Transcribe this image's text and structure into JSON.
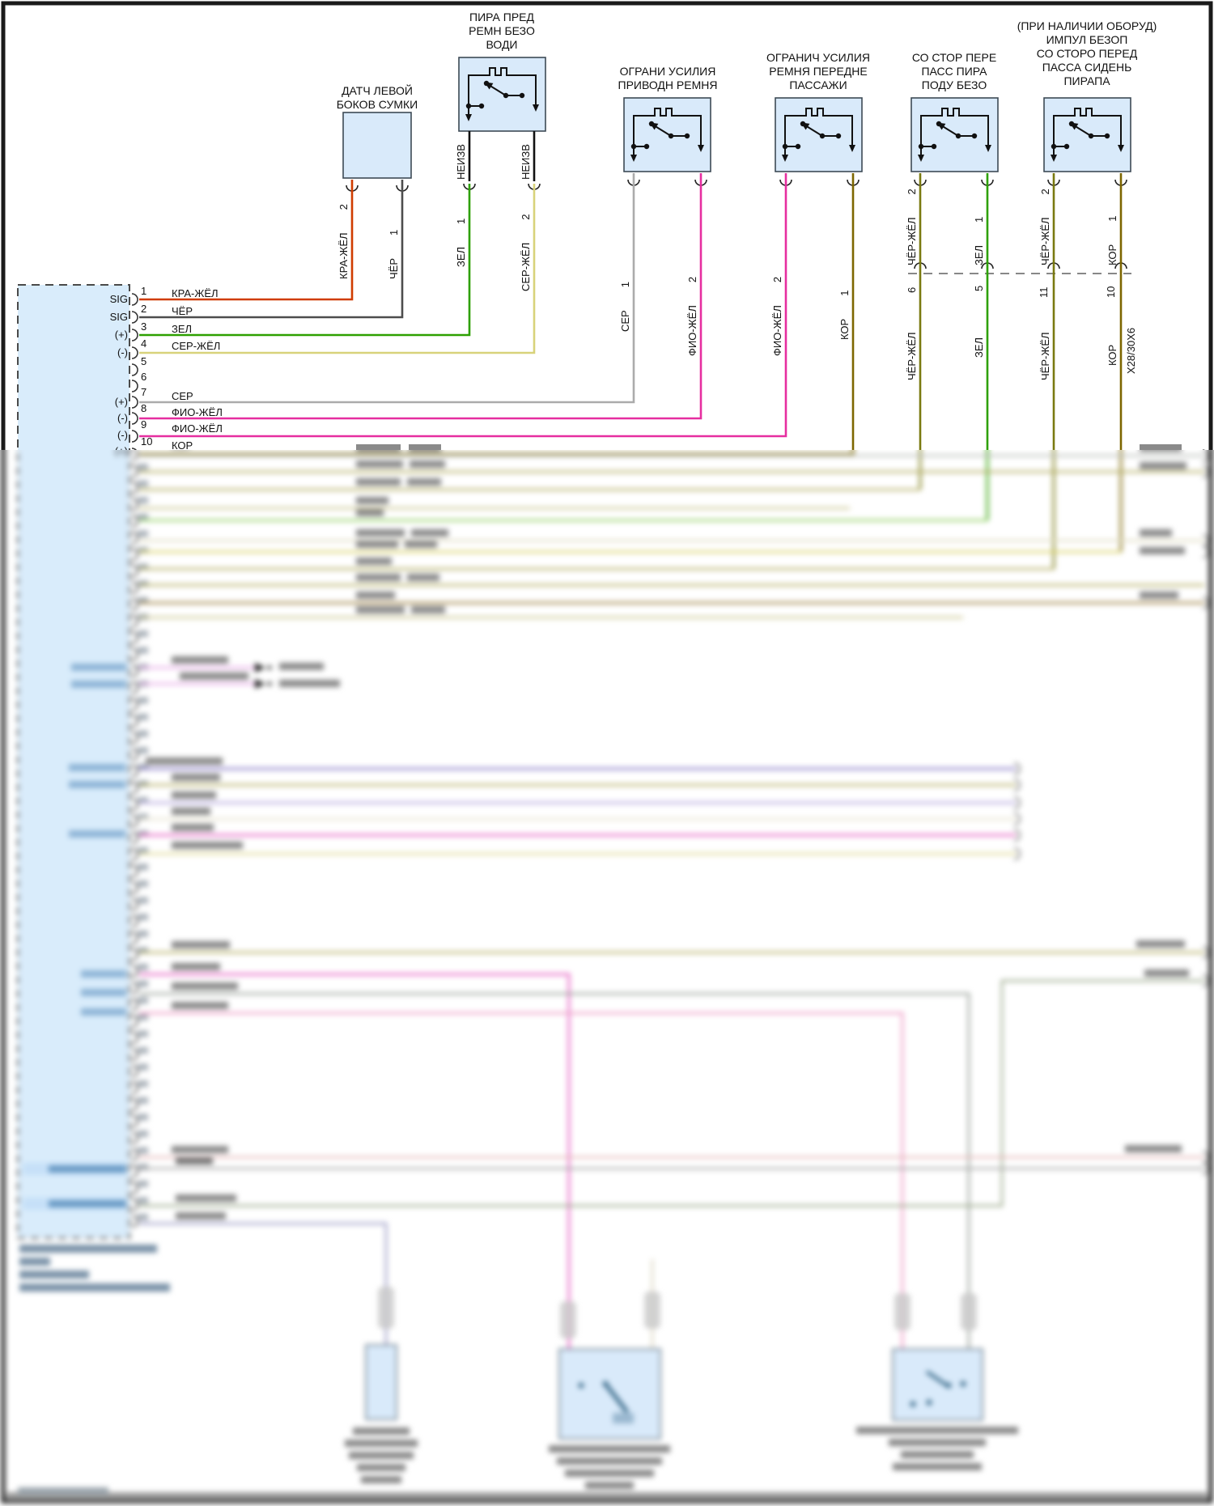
{
  "components": {
    "c1": {
      "title": "ДАТЧ ЛЕВОЙ\nБОКОВ СУМКИ",
      "pin_left_num": "2",
      "pin_left_wire": "КРА-ЖЁЛ",
      "pin_right_num": "1",
      "pin_right_wire": "ЧЁР"
    },
    "c2": {
      "title": "ПИРА ПРЕД\nРЕМН БЕЗО\nВОДИ",
      "pin1_num": "1",
      "pin1_stub": "НЕИЗВ",
      "pin1_wire": "ЗЕЛ",
      "pin2_num": "2",
      "pin2_stub": "НЕИЗВ",
      "pin2_wire": "СЕР-ЖЁЛ"
    },
    "c3": {
      "title": "ОГРАНИ УСИЛИЯ\nПРИВОДН РЕМНЯ",
      "pin1_num": "1",
      "pin1_wire": "СЕР",
      "pin2_num": "2",
      "pin2_wire": "ФИО-ЖЁЛ"
    },
    "c4": {
      "title": "ОГРАНИЧ УСИЛИЯ\nРЕМНЯ ПЕРЕДНЕ\nПАССАЖИ",
      "pin2_num": "2",
      "pin2_wire": "ФИО-ЖЁЛ",
      "pin1_num": "1",
      "pin1_wire": "КОР"
    },
    "c5": {
      "title": "СО СТОР ПЕРЕ\nПАСС ПИРА\nПОДУ БЕЗО",
      "pin2_num": "2",
      "pin2_wire": "ЧЁР-ЖЁЛ",
      "pin1_num": "1",
      "pin1_wire": "ЗЕЛ"
    },
    "c6": {
      "title": "(ПРИ НАЛИЧИИ ОБОРУД)\nИМПУЛ БЕЗОП\nСО СТОРО ПЕРЕД\nПАССА СИДЕНЬ\nПИРАПА",
      "pin2_num": "2",
      "pin2_wire": "ЧЁР-ЖЁЛ",
      "pin1_num": "1",
      "pin1_wire": "КОР"
    }
  },
  "inline_connector": {
    "name": "X28/30X6",
    "pin_nums": [
      "6",
      "5",
      "11",
      "10"
    ],
    "wires": [
      "ЧЁР-ЖЁЛ",
      "ЗЕЛ",
      "ЧЁР-ЖЁЛ",
      "КОР"
    ]
  },
  "module": {
    "pins": [
      {
        "num": "1",
        "label": "SIG",
        "wire": "КРА-ЖЁЛ"
      },
      {
        "num": "2",
        "label": "SIG",
        "wire": "ЧЁР"
      },
      {
        "num": "3",
        "label": "(+)",
        "wire": "ЗЕЛ"
      },
      {
        "num": "4",
        "label": "(-)",
        "wire": "СЕР-ЖЁЛ"
      },
      {
        "num": "5",
        "label": "",
        "wire": ""
      },
      {
        "num": "6",
        "label": "",
        "wire": ""
      },
      {
        "num": "7",
        "label": "(+)",
        "wire": "СЕР"
      },
      {
        "num": "8",
        "label": "(-)",
        "wire": "ФИО-ЖЁЛ"
      },
      {
        "num": "9",
        "label": "(-)",
        "wire": "ФИО-ЖЁЛ"
      },
      {
        "num": "10",
        "label": "(+)",
        "wire": "КОР"
      }
    ]
  },
  "wire_colors": {
    "КРА-ЖЁЛ": "#d03c00",
    "ЧЁР": "#4d4d4d",
    "ЗЕЛ": "#2da000",
    "СЕР-ЖЁЛ": "#d8d27a",
    "СЕР": "#ababab",
    "ФИО-ЖЁЛ": "#e62ea0",
    "КОР": "#7d6600",
    "ЧЁР-ЖЁЛ": "#7a7a10"
  }
}
